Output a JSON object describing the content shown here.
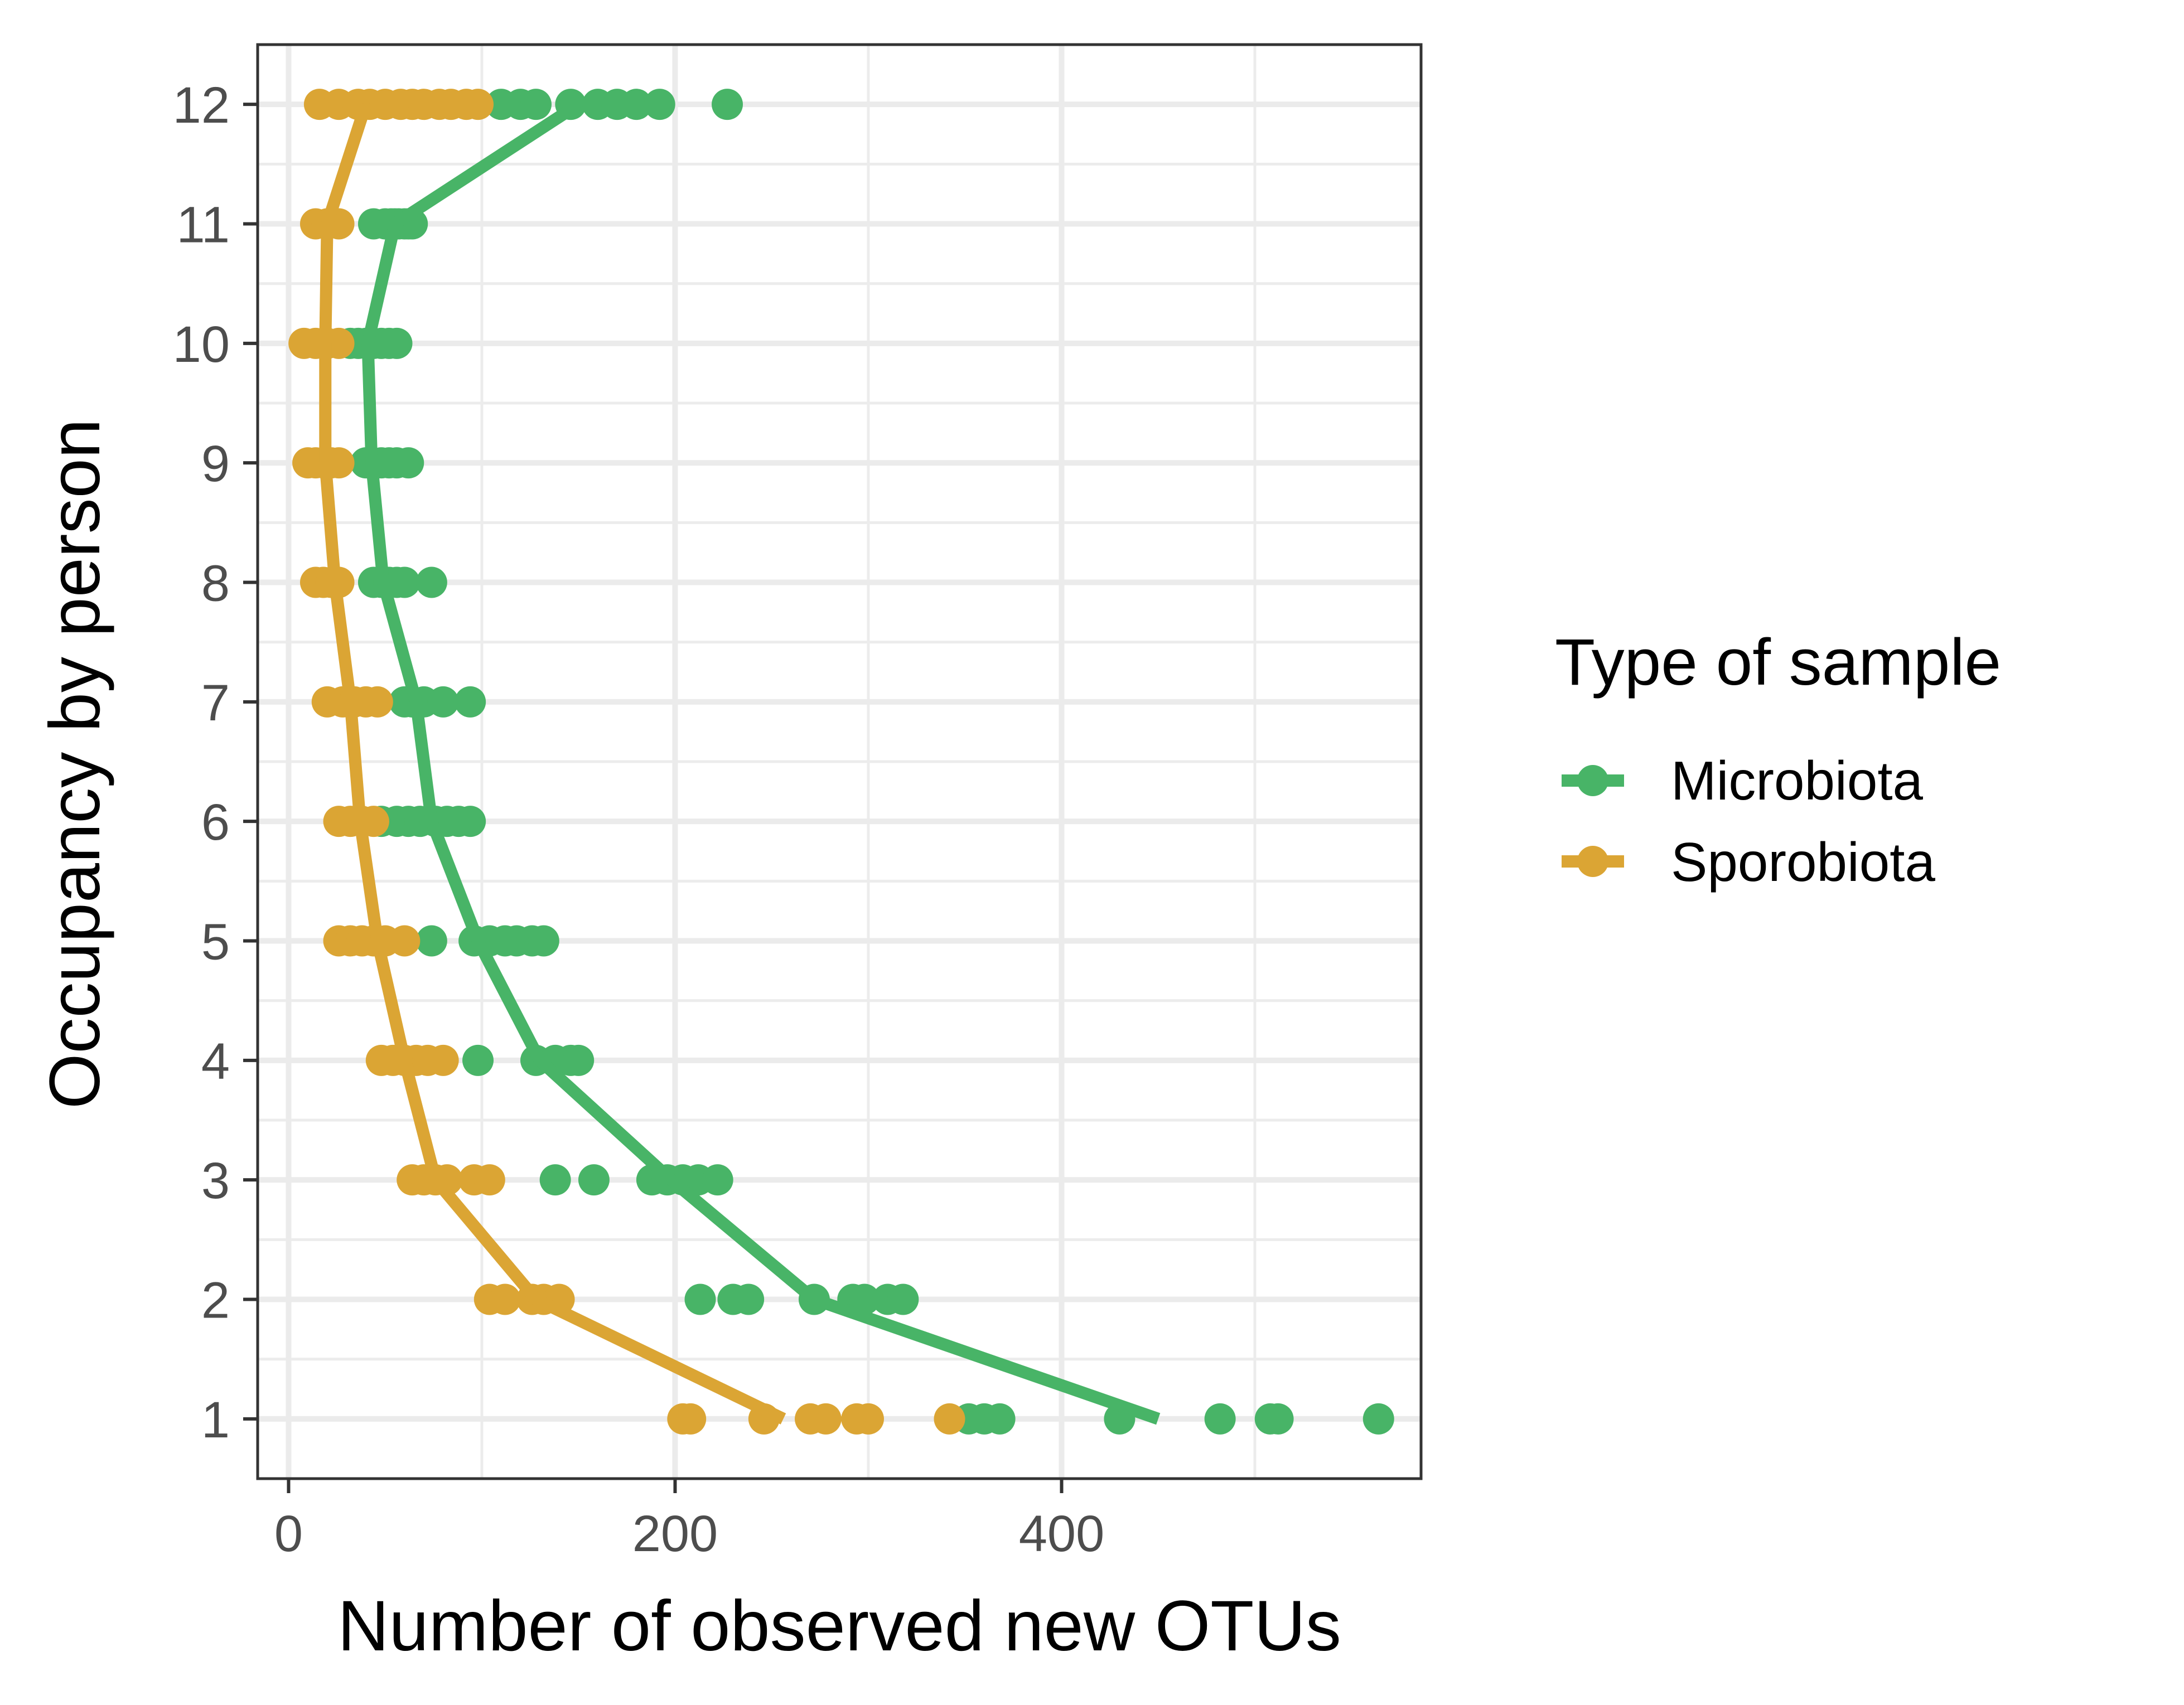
{
  "chart_data": {
    "type": "scatter",
    "xlabel": "Number of observed new OTUs",
    "ylabel": "Occupancy by person",
    "xlim": [
      -16,
      586
    ],
    "ylim": [
      0.5,
      12.5
    ],
    "x_ticks": [
      0,
      200,
      400
    ],
    "y_ticks": [
      1,
      2,
      3,
      4,
      5,
      6,
      7,
      8,
      9,
      10,
      11,
      12
    ],
    "grid": true,
    "legend": {
      "title": "Type of sample",
      "position": "right"
    },
    "series": [
      {
        "name": "Microbiota",
        "color": "#48b467",
        "points": [
          [
            110,
            12
          ],
          [
            120,
            12
          ],
          [
            128,
            12
          ],
          [
            146,
            12
          ],
          [
            160,
            12
          ],
          [
            170,
            12
          ],
          [
            180,
            12
          ],
          [
            192,
            12
          ],
          [
            227,
            12
          ],
          [
            44,
            11
          ],
          [
            50,
            11
          ],
          [
            53,
            11
          ],
          [
            55,
            11
          ],
          [
            57,
            11
          ],
          [
            60,
            11
          ],
          [
            62,
            11
          ],
          [
            64,
            11
          ],
          [
            32,
            10
          ],
          [
            36,
            10
          ],
          [
            40,
            10
          ],
          [
            44,
            10
          ],
          [
            48,
            10
          ],
          [
            52,
            10
          ],
          [
            56,
            10
          ],
          [
            40,
            9
          ],
          [
            44,
            9
          ],
          [
            48,
            9
          ],
          [
            52,
            9
          ],
          [
            56,
            9
          ],
          [
            62,
            9
          ],
          [
            44,
            8
          ],
          [
            48,
            8
          ],
          [
            52,
            8
          ],
          [
            56,
            8
          ],
          [
            60,
            8
          ],
          [
            74,
            8
          ],
          [
            60,
            7
          ],
          [
            64,
            7
          ],
          [
            70,
            7
          ],
          [
            80,
            7
          ],
          [
            94,
            7
          ],
          [
            48,
            6
          ],
          [
            56,
            6
          ],
          [
            62,
            6
          ],
          [
            68,
            6
          ],
          [
            76,
            6
          ],
          [
            82,
            6
          ],
          [
            88,
            6
          ],
          [
            94,
            6
          ],
          [
            74,
            5
          ],
          [
            96,
            5
          ],
          [
            104,
            5
          ],
          [
            112,
            5
          ],
          [
            118,
            5
          ],
          [
            126,
            5
          ],
          [
            132,
            5
          ],
          [
            98,
            4
          ],
          [
            128,
            4
          ],
          [
            138,
            4
          ],
          [
            146,
            4
          ],
          [
            150,
            4
          ],
          [
            138,
            3
          ],
          [
            158,
            3
          ],
          [
            188,
            3
          ],
          [
            196,
            3
          ],
          [
            204,
            3
          ],
          [
            212,
            3
          ],
          [
            222,
            3
          ],
          [
            213,
            2
          ],
          [
            230,
            2
          ],
          [
            238,
            2
          ],
          [
            272,
            2
          ],
          [
            292,
            2
          ],
          [
            298,
            2
          ],
          [
            310,
            2
          ],
          [
            318,
            2
          ],
          [
            352,
            1
          ],
          [
            360,
            1
          ],
          [
            368,
            1
          ],
          [
            430,
            1
          ],
          [
            482,
            1
          ],
          [
            508,
            1
          ],
          [
            512,
            1
          ],
          [
            564,
            1
          ]
        ],
        "trend": [
          [
            150,
            12
          ],
          [
            55,
            11
          ],
          [
            41,
            10
          ],
          [
            43,
            9
          ],
          [
            49,
            8
          ],
          [
            66,
            7
          ],
          [
            74,
            6
          ],
          [
            98,
            5
          ],
          [
            130,
            4
          ],
          [
            198,
            3
          ],
          [
            272,
            2
          ],
          [
            450,
            1
          ]
        ]
      },
      {
        "name": "Sporobiota",
        "color": "#dba534",
        "points": [
          [
            16,
            12
          ],
          [
            26,
            12
          ],
          [
            36,
            12
          ],
          [
            42,
            12
          ],
          [
            50,
            12
          ],
          [
            58,
            12
          ],
          [
            64,
            12
          ],
          [
            70,
            12
          ],
          [
            78,
            12
          ],
          [
            84,
            12
          ],
          [
            92,
            12
          ],
          [
            98,
            12
          ],
          [
            14,
            11
          ],
          [
            20,
            11
          ],
          [
            26,
            11
          ],
          [
            8,
            10
          ],
          [
            14,
            10
          ],
          [
            20,
            10
          ],
          [
            26,
            10
          ],
          [
            10,
            9
          ],
          [
            14,
            9
          ],
          [
            18,
            9
          ],
          [
            22,
            9
          ],
          [
            26,
            9
          ],
          [
            14,
            8
          ],
          [
            18,
            8
          ],
          [
            22,
            8
          ],
          [
            26,
            8
          ],
          [
            20,
            7
          ],
          [
            28,
            7
          ],
          [
            34,
            7
          ],
          [
            40,
            7
          ],
          [
            46,
            7
          ],
          [
            26,
            6
          ],
          [
            32,
            6
          ],
          [
            38,
            6
          ],
          [
            44,
            6
          ],
          [
            26,
            5
          ],
          [
            32,
            5
          ],
          [
            38,
            5
          ],
          [
            44,
            5
          ],
          [
            50,
            5
          ],
          [
            60,
            5
          ],
          [
            48,
            4
          ],
          [
            54,
            4
          ],
          [
            60,
            4
          ],
          [
            66,
            4
          ],
          [
            72,
            4
          ],
          [
            80,
            4
          ],
          [
            64,
            3
          ],
          [
            70,
            3
          ],
          [
            76,
            3
          ],
          [
            82,
            3
          ],
          [
            96,
            3
          ],
          [
            104,
            3
          ],
          [
            104,
            2
          ],
          [
            112,
            2
          ],
          [
            126,
            2
          ],
          [
            132,
            2
          ],
          [
            140,
            2
          ],
          [
            204,
            1
          ],
          [
            208,
            1
          ],
          [
            246,
            1
          ],
          [
            270,
            1
          ],
          [
            278,
            1
          ],
          [
            294,
            1
          ],
          [
            300,
            1
          ],
          [
            342,
            1
          ]
        ],
        "trend": [
          [
            40,
            12
          ],
          [
            20,
            11
          ],
          [
            19,
            10
          ],
          [
            19,
            9
          ],
          [
            24,
            8
          ],
          [
            32,
            7
          ],
          [
            37,
            6
          ],
          [
            46,
            5
          ],
          [
            60,
            4
          ],
          [
            76,
            3
          ],
          [
            128,
            2
          ],
          [
            256,
            1
          ]
        ]
      }
    ]
  }
}
